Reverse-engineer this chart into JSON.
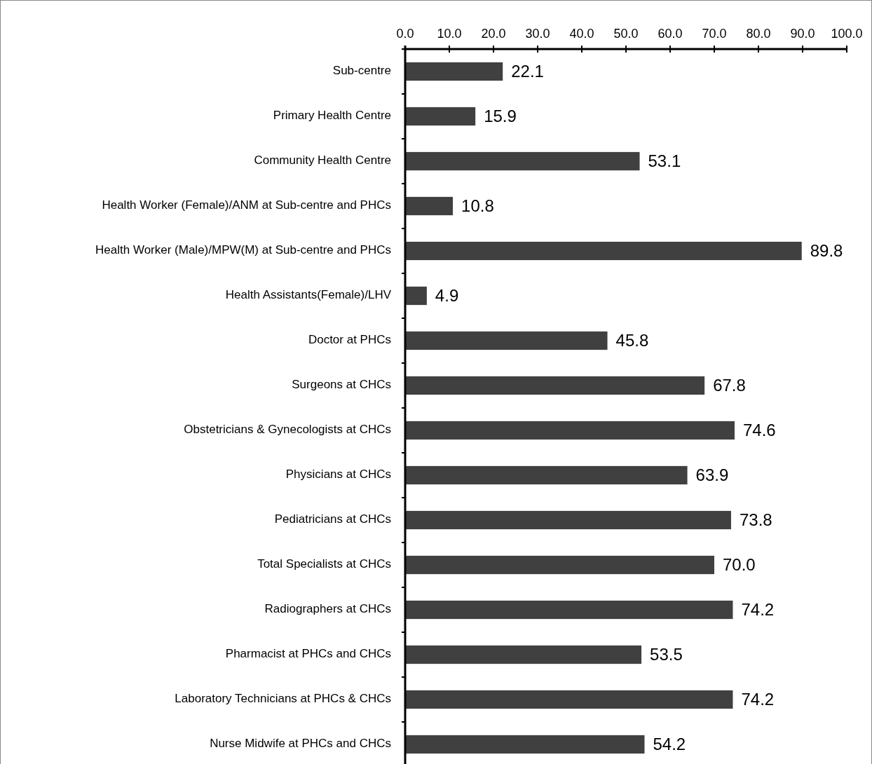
{
  "chart_data": {
    "type": "bar",
    "orientation": "horizontal",
    "categories": [
      "Sub-centre",
      "Primary Health Centre",
      "Community Health Centre",
      "Health Worker (Female)/ANM at Sub-centre and PHCs",
      "Health Worker (Male)/MPW(M) at Sub-centre and PHCs",
      "Health Assistants(Female)/LHV",
      "Doctor at PHCs",
      "Surgeons at CHCs",
      "Obstetricians & Gynecologists at CHCs",
      "Physicians at CHCs",
      "Pediatricians at CHCs",
      "Total Specialists at CHCs",
      "Radiographers at CHCs",
      "Pharmacist at PHCs and CHCs",
      "Laboratory Technicians at PHCs & CHCs",
      "Nurse Midwife at PHCs and CHCs"
    ],
    "values": [
      22.1,
      15.9,
      53.1,
      10.8,
      89.8,
      4.9,
      45.8,
      67.8,
      74.6,
      63.9,
      73.8,
      70.0,
      74.2,
      53.5,
      74.2,
      54.2
    ],
    "value_labels": [
      "22.1",
      "15.9",
      "53.1",
      "10.8",
      "89.8",
      "4.9",
      "45.8",
      "67.8",
      "74.6",
      "63.9",
      "73.8",
      "70.0",
      "74.2",
      "53.5",
      "74.2",
      "54.2"
    ],
    "color": "#404040",
    "xlim": [
      0,
      100
    ],
    "xticks": [
      {
        "value": 0,
        "label": "0.0"
      },
      {
        "value": 10,
        "label": "10.0"
      },
      {
        "value": 20,
        "label": "20.0"
      },
      {
        "value": 30,
        "label": "30.0"
      },
      {
        "value": 40,
        "label": "40.0"
      },
      {
        "value": 50,
        "label": "50.0"
      },
      {
        "value": 60,
        "label": "60.0"
      },
      {
        "value": 70,
        "label": "70.0"
      },
      {
        "value": 80,
        "label": "80.0"
      },
      {
        "value": 90,
        "label": "90.0"
      },
      {
        "value": 100,
        "label": "100.0"
      }
    ]
  }
}
